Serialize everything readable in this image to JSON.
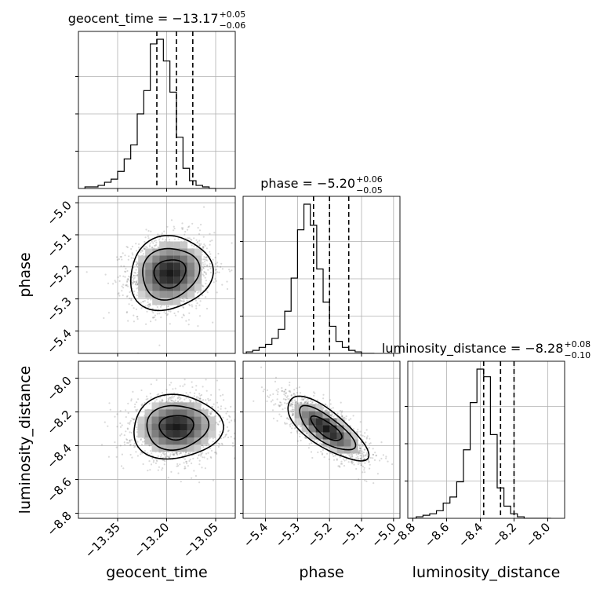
{
  "chart_data": {
    "type": "corner",
    "parameters": [
      "geocent_time",
      "phase",
      "luminosity_distance"
    ],
    "titles": [
      {
        "param": "geocent_time",
        "text": "geocent_time = −13.17",
        "sup": "+0.05",
        "sub": "−0.06"
      },
      {
        "param": "phase",
        "text": "phase = −5.20",
        "sup": "+0.06",
        "sub": "−0.05"
      },
      {
        "param": "luminosity_distance",
        "text": "luminosity_distance = −8.28",
        "sup": "+0.08",
        "sub": "−0.10"
      }
    ],
    "axis_labels": {
      "geocent_time": "geocent_time",
      "phase": "phase",
      "luminosity_distance": "luminosity_distance"
    },
    "ranges": {
      "geocent_time": [
        -13.47,
        -12.99
      ],
      "phase": [
        -5.47,
        -4.98
      ],
      "luminosity_distance": [
        -8.83,
        -7.9
      ]
    },
    "ticks": {
      "geocent_time": [
        {
          "v": -13.35,
          "label": "−13.35"
        },
        {
          "v": -13.2,
          "label": "−13.20"
        },
        {
          "v": -13.05,
          "label": "−13.05"
        }
      ],
      "phase": [
        {
          "v": -5.4,
          "label": "−5.4"
        },
        {
          "v": -5.3,
          "label": "−5.3"
        },
        {
          "v": -5.2,
          "label": "−5.2"
        },
        {
          "v": -5.1,
          "label": "−5.1"
        },
        {
          "v": -5.0,
          "label": "−5.0"
        }
      ],
      "luminosity_distance": [
        {
          "v": -8.8,
          "label": "−8.8"
        },
        {
          "v": -8.6,
          "label": "−8.6"
        },
        {
          "v": -8.4,
          "label": "−8.4"
        },
        {
          "v": -8.2,
          "label": "−8.2"
        },
        {
          "v": -8.0,
          "label": "−8.0"
        }
      ]
    },
    "quantiles": {
      "geocent_time": [
        -13.23,
        -13.17,
        -13.12
      ],
      "phase": [
        -5.25,
        -5.2,
        -5.14
      ],
      "luminosity_distance": [
        -8.38,
        -8.28,
        -8.2
      ]
    },
    "histograms": {
      "geocent_time": {
        "x0": -13.45,
        "dx": 0.02,
        "counts": [
          0.01,
          0.01,
          0.02,
          0.04,
          0.06,
          0.11,
          0.19,
          0.28,
          0.48,
          0.63,
          0.93,
          0.96,
          0.82,
          0.62,
          0.33,
          0.13,
          0.05,
          0.02,
          0.01,
          0.0
        ]
      },
      "phase": {
        "x0": -5.46,
        "dx": 0.02,
        "counts": [
          0.01,
          0.02,
          0.04,
          0.06,
          0.1,
          0.16,
          0.28,
          0.5,
          0.82,
          0.99,
          0.85,
          0.56,
          0.34,
          0.18,
          0.08,
          0.04,
          0.02,
          0.01,
          0.0,
          0.0
        ]
      },
      "luminosity_distance": {
        "x0": -8.82,
        "dx": 0.04,
        "counts": [
          0.0,
          0.01,
          0.02,
          0.03,
          0.05,
          0.1,
          0.14,
          0.24,
          0.45,
          0.76,
          0.98,
          0.93,
          0.55,
          0.2,
          0.08,
          0.03,
          0.01,
          0.0,
          0.0,
          0.0,
          0.0
        ]
      }
    },
    "correlations": {
      "phase|geocent_time": {
        "mean": [
          -13.19,
          -5.22
        ],
        "sd": [
          0.06,
          0.055
        ],
        "rho": 0.1
      },
      "luminosity_distance|geocent_time": {
        "mean": [
          -13.17,
          -8.29
        ],
        "sd": [
          0.065,
          0.09
        ],
        "rho": 0.05
      },
      "luminosity_distance|phase": {
        "mean": [
          -5.21,
          -8.3
        ],
        "sd": [
          0.06,
          0.09
        ],
        "rho": -0.75
      }
    },
    "grid": true
  }
}
